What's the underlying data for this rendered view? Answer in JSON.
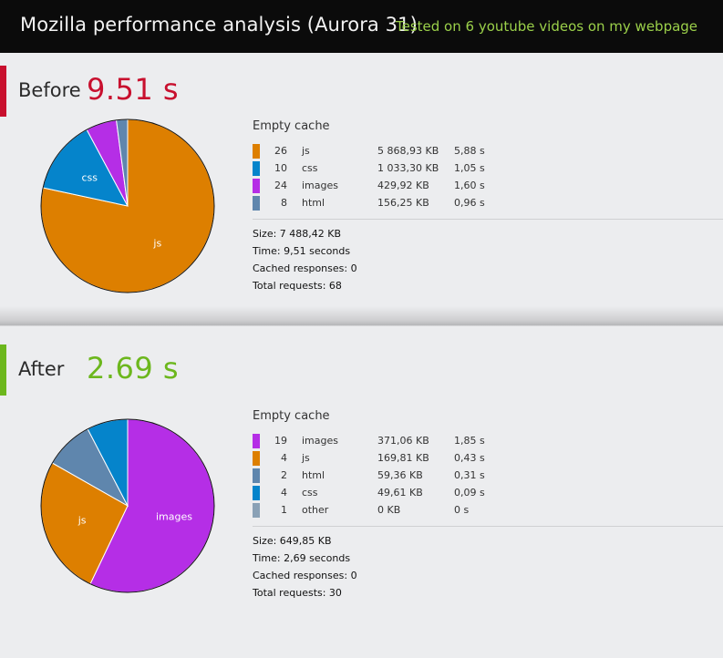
{
  "header": {
    "title": "Mozilla performance analysis (Aurora 31)",
    "subtitle": "Tested on 6 youtube videos on my webpage"
  },
  "colors": {
    "js": "#dd7f00",
    "css": "#0584cb",
    "images": "#b52ee6",
    "html": "#5f86ad",
    "other": "#8aa1b6",
    "before_accent": "#c8102e",
    "after_accent": "#6cb71d"
  },
  "chart_data": [
    {
      "type": "pie",
      "name": "Before",
      "headline": "9.51 s",
      "cache_label": "Empty cache",
      "slices": [
        {
          "label": "js",
          "count": "26",
          "type": "js",
          "size": "5 868,93 KB",
          "time": "5,88 s",
          "value": 5868.93,
          "color": "#dd7f00",
          "slice_label": "js"
        },
        {
          "label": "css",
          "count": "10",
          "type": "css",
          "size": "1 033,30 KB",
          "time": "1,05 s",
          "value": 1033.3,
          "color": "#0584cb",
          "slice_label": "css"
        },
        {
          "label": "images",
          "count": "24",
          "type": "images",
          "size": "429,92 KB",
          "time": "1,60 s",
          "value": 429.92,
          "color": "#b52ee6",
          "slice_label": ""
        },
        {
          "label": "html",
          "count": "8",
          "type": "html",
          "size": "156,25 KB",
          "time": "0,96 s",
          "value": 156.25,
          "color": "#5f86ad",
          "slice_label": ""
        }
      ],
      "summary": {
        "size": "Size: 7 488,42 KB",
        "time": "Time: 9,51 seconds",
        "cached": "Cached responses: 0",
        "requests": "Total requests: 68"
      }
    },
    {
      "type": "pie",
      "name": "After",
      "headline": "2.69 s",
      "cache_label": "Empty cache",
      "slices": [
        {
          "label": "images",
          "count": "19",
          "type": "images",
          "size": "371,06 KB",
          "time": "1,85 s",
          "value": 371.06,
          "color": "#b52ee6",
          "slice_label": "images"
        },
        {
          "label": "js",
          "count": "4",
          "type": "js",
          "size": "169,81 KB",
          "time": "0,43 s",
          "value": 169.81,
          "color": "#dd7f00",
          "slice_label": "js"
        },
        {
          "label": "html",
          "count": "2",
          "type": "html",
          "size": "59,36 KB",
          "time": "0,31 s",
          "value": 59.36,
          "color": "#5f86ad",
          "slice_label": ""
        },
        {
          "label": "css",
          "count": "4",
          "type": "css",
          "size": "49,61 KB",
          "time": "0,09 s",
          "value": 49.61,
          "color": "#0584cb",
          "slice_label": ""
        },
        {
          "label": "other",
          "count": "1",
          "type": "other",
          "size": "0 KB",
          "time": "0 s",
          "value": 0,
          "color": "#8aa1b6",
          "slice_label": ""
        }
      ],
      "summary": {
        "size": "Size: 649,85 KB",
        "time": "Time: 2,69 seconds",
        "cached": "Cached responses: 0",
        "requests": "Total requests: 30"
      }
    }
  ]
}
